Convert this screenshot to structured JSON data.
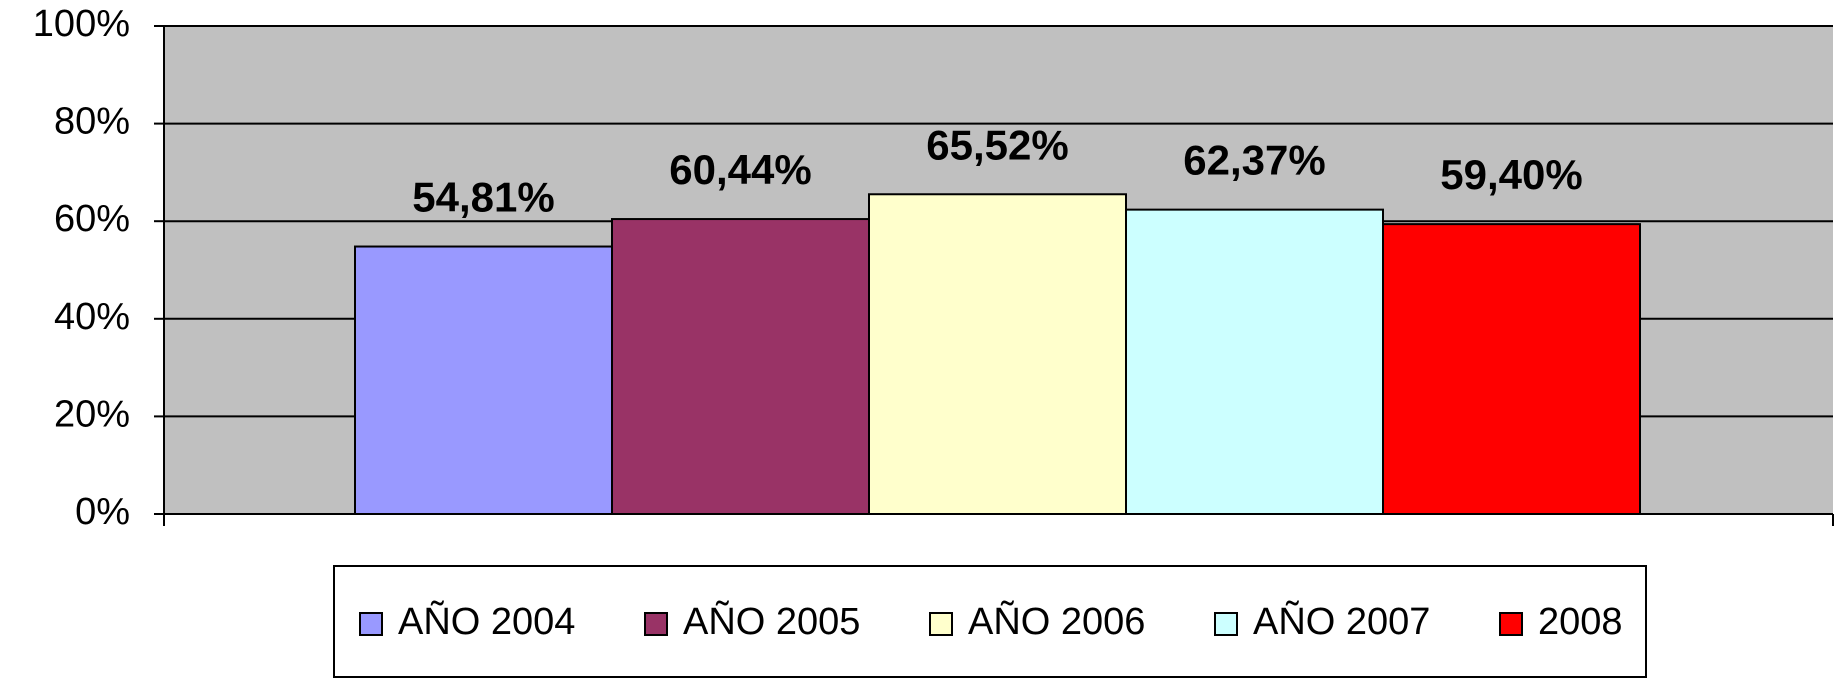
{
  "chart_data": {
    "type": "bar",
    "series": [
      {
        "name": "AÑO 2004",
        "color": "#9999ff",
        "values": [
          54.81
        ],
        "value_labels": [
          "54,81%"
        ]
      },
      {
        "name": "AÑO 2005",
        "color": "#993366",
        "values": [
          60.44
        ],
        "value_labels": [
          "60,44%"
        ]
      },
      {
        "name": "AÑO 2006",
        "color": "#ffffcc",
        "values": [
          65.52
        ],
        "value_labels": [
          "65,52%"
        ]
      },
      {
        "name": "AÑO 2007",
        "color": "#ccffff",
        "values": [
          62.37
        ],
        "value_labels": [
          "62,37%"
        ]
      },
      {
        "name": "2008",
        "color": "#ff0000",
        "values": [
          59.4
        ],
        "value_labels": [
          "59,40%"
        ]
      }
    ],
    "ylim": [
      0,
      100
    ],
    "yticks": [
      {
        "value": 0,
        "label": "0%"
      },
      {
        "value": 20,
        "label": "20%"
      },
      {
        "value": 40,
        "label": "40%"
      },
      {
        "value": 60,
        "label": "60%"
      },
      {
        "value": 80,
        "label": "80%"
      },
      {
        "value": 100,
        "label": "100%"
      }
    ],
    "grid": true,
    "plot_background": "#c0c0c0",
    "legend": "bottom"
  }
}
